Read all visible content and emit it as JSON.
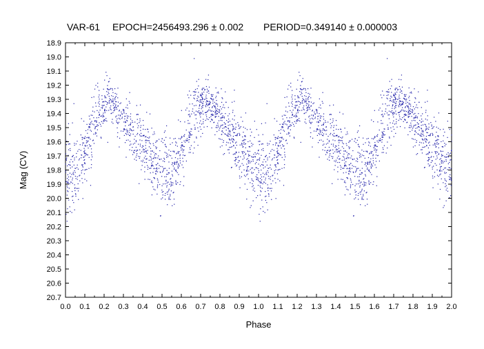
{
  "chart_data": {
    "type": "scatter",
    "title_parts": [
      "VAR-61",
      "EPOCH=2456493.296 ± 0.002",
      "PERIOD=0.349140 ± 0.000003"
    ],
    "xlabel": "Phase",
    "ylabel": "Mag (CV)",
    "xlim": [
      0.0,
      2.0
    ],
    "ylim": [
      20.7,
      18.9
    ],
    "y_inverted": true,
    "grid": false,
    "x_ticks": [
      "0.0",
      "0.1",
      "0.2",
      "0.3",
      "0.4",
      "0.5",
      "0.6",
      "0.7",
      "0.8",
      "0.9",
      "1.0",
      "1.1",
      "1.2",
      "1.3",
      "1.4",
      "1.5",
      "1.6",
      "1.7",
      "1.8",
      "1.9",
      "2.0"
    ],
    "y_ticks": [
      "18.9",
      "19.0",
      "19.1",
      "19.2",
      "19.3",
      "19.4",
      "19.5",
      "19.6",
      "19.7",
      "19.8",
      "19.9",
      "20.0",
      "20.1",
      "20.2",
      "20.3",
      "20.4",
      "20.5",
      "20.6",
      "20.7"
    ],
    "marker_color": "#1a1aa6",
    "light_curve_model": {
      "period_in_phase": 0.5,
      "mean_mag": 19.58,
      "amplitude": 0.23,
      "max_phase": 0.25,
      "min_phase": 0.0,
      "scatter_sigma": 0.11
    },
    "approx_points_per_cycle": 1500
  }
}
